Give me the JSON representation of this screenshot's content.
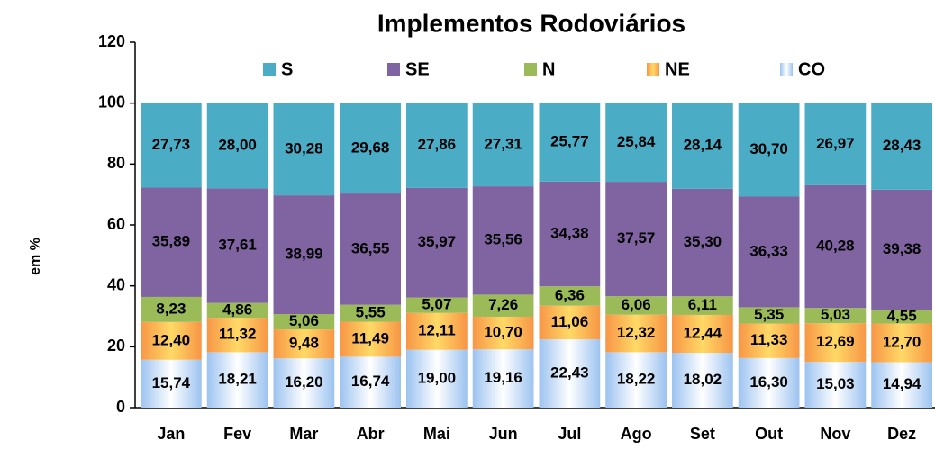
{
  "chart_data": {
    "type": "stacked_bar",
    "title": "Implementos Rodoviários",
    "y_label": "em %",
    "categories": [
      "Jan",
      "Fev",
      "Mar",
      "Abr",
      "Mai",
      "Jun",
      "Jul",
      "Ago",
      "Set",
      "Out",
      "Nov",
      "Dez"
    ],
    "ylim": [
      0,
      120
    ],
    "yticks": [
      0,
      20,
      40,
      60,
      80,
      100,
      120
    ],
    "legend": "top",
    "series": [
      {
        "name": "S",
        "color": "#4bacc6",
        "values": [
          27.73,
          28.0,
          30.28,
          29.68,
          27.86,
          27.31,
          25.77,
          25.84,
          28.14,
          30.7,
          26.97,
          28.43
        ],
        "value_labels": [
          "27,73",
          "28,00",
          "30,28",
          "29,68",
          "27,86",
          "27,31",
          "25,77",
          "25,84",
          "28,14",
          "30,70",
          "26,97",
          "28,43"
        ]
      },
      {
        "name": "SE",
        "color": "#8064a2",
        "values": [
          35.89,
          37.61,
          38.99,
          36.55,
          35.97,
          35.56,
          34.38,
          37.57,
          35.3,
          36.33,
          40.28,
          39.38
        ],
        "value_labels": [
          "35,89",
          "37,61",
          "38,99",
          "36,55",
          "35,97",
          "35,56",
          "34,38",
          "37,57",
          "35,30",
          "36,33",
          "40,28",
          "39,38"
        ]
      },
      {
        "name": "N",
        "color": "#9bbb59",
        "values": [
          8.23,
          4.86,
          5.06,
          5.55,
          5.07,
          7.26,
          6.36,
          6.06,
          6.11,
          5.35,
          5.03,
          4.55
        ],
        "value_labels": [
          "8,23",
          "4,86",
          "5,06",
          "5,55",
          "5,07",
          "7,26",
          "6,36",
          "6,06",
          "6,11",
          "5,35",
          "5,03",
          "4,55"
        ]
      },
      {
        "name": "NE",
        "color": "#f79646",
        "values": [
          12.4,
          11.32,
          9.48,
          11.49,
          12.11,
          10.7,
          11.06,
          12.32,
          12.44,
          11.33,
          12.69,
          12.7
        ],
        "value_labels": [
          "12,40",
          "11,32",
          "9,48",
          "11,49",
          "12,11",
          "10,70",
          "11,06",
          "12,32",
          "12,44",
          "11,33",
          "12,69",
          "12,70"
        ]
      },
      {
        "name": "CO",
        "color": "#9cc3f0",
        "values": [
          15.74,
          18.21,
          16.2,
          16.74,
          19.0,
          19.16,
          22.43,
          18.22,
          18.02,
          16.3,
          15.03,
          14.94
        ],
        "value_labels": [
          "15,74",
          "18,21",
          "16,20",
          "16,74",
          "19,00",
          "19,16",
          "22,43",
          "18,22",
          "18,02",
          "16,30",
          "15,03",
          "14,94"
        ]
      }
    ]
  }
}
